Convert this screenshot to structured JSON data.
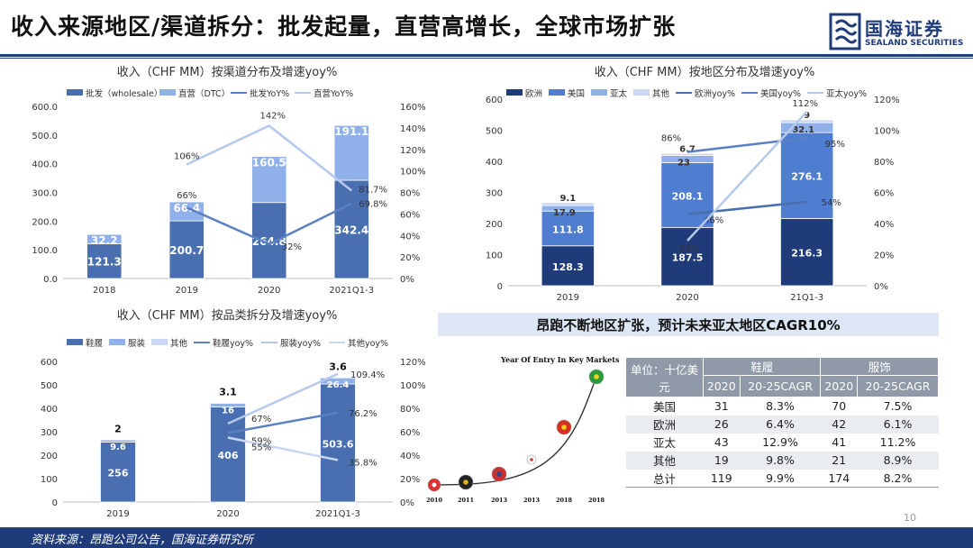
{
  "header": {
    "title": "收入来源地区/渠道拆分：批发起量，直营高增长，全球市场扩张",
    "logo_cn": "国海证券",
    "logo_en": "SEALAND SECURITIES"
  },
  "colors": {
    "navy": "#1f3b7a",
    "dark_blue": "#4a6fb0",
    "mid_blue": "#4f7ed0",
    "light_blue": "#8fb0e8",
    "pale_blue": "#c9d7f2",
    "line_dark": "#5a80c4",
    "line_light": "#b5c9ec",
    "banner": "#dce6f4",
    "table_header": "#8f99a8"
  },
  "chart_data": [
    {
      "type": "bar",
      "stacked": true,
      "title": "收入（CHF MM）按渠道分布及增速yoy%",
      "categories": [
        "2018",
        "2019",
        "2020",
        "2021Q1-3"
      ],
      "series": [
        {
          "name": "批发（wholesale）",
          "values": [
            121.3,
            200.7,
            264.8,
            342.4
          ],
          "labels": [
            "121.3",
            "200.7",
            "264.8",
            "342.4"
          ]
        },
        {
          "name": "直营（DTC）",
          "values": [
            32.2,
            66.4,
            160.5,
            191.1
          ],
          "labels": [
            "32.2",
            "66.4",
            "160.5",
            "191.1"
          ]
        }
      ],
      "lines": [
        {
          "name": "批发YoY%",
          "values": [
            null,
            66,
            32,
            69.8
          ],
          "labels": [
            "",
            "66%",
            "32%",
            "69.8%"
          ]
        },
        {
          "name": "直营YoY%",
          "values": [
            null,
            106,
            142,
            81.7
          ],
          "labels": [
            "",
            "106%",
            "142%",
            "81.7%"
          ]
        }
      ],
      "ylim": [
        0,
        600
      ],
      "yticks": [
        "0.0",
        "100.0",
        "200.0",
        "300.0",
        "400.0",
        "500.0",
        "600.0"
      ],
      "y2lim": [
        0,
        160
      ],
      "y2ticks": [
        "0%",
        "20%",
        "40%",
        "60%",
        "80%",
        "100%",
        "120%",
        "140%",
        "160%"
      ],
      "legend": "top"
    },
    {
      "type": "bar",
      "stacked": true,
      "title": "收入（CHF MM）按地区分布及增速yoy%",
      "categories": [
        "2019",
        "2020",
        "21Q1-3"
      ],
      "series": [
        {
          "name": "欧洲",
          "values": [
            128.3,
            187.5,
            216.3
          ],
          "labels": [
            "128.3",
            "187.5",
            "216.3"
          ]
        },
        {
          "name": "美国",
          "values": [
            111.8,
            208.1,
            276.1
          ],
          "labels": [
            "111.8",
            "208.1",
            "276.1"
          ]
        },
        {
          "name": "亚太",
          "values": [
            17.9,
            23,
            32.1
          ],
          "labels": [
            "17.9",
            "23",
            "32.1"
          ]
        },
        {
          "name": "其他",
          "values": [
            9.1,
            6.7,
            9
          ],
          "labels": [
            "9.1",
            "6.7",
            "9"
          ]
        }
      ],
      "lines": [
        {
          "name": "欧洲yoy%",
          "values": [
            null,
            46,
            54
          ],
          "labels": [
            "",
            "46%",
            "54%"
          ]
        },
        {
          "name": "美国yoy%",
          "values": [
            null,
            86,
            95
          ],
          "labels": [
            "",
            "86%",
            "95%"
          ]
        },
        {
          "name": "亚太yoy%",
          "values": [
            null,
            29,
            112
          ],
          "labels": [
            "",
            "29%",
            "112%"
          ]
        }
      ],
      "ylim": [
        0,
        600
      ],
      "yticks": [
        "0",
        "100",
        "200",
        "300",
        "400",
        "500",
        "600"
      ],
      "y2lim": [
        0,
        120
      ],
      "y2ticks": [
        "0%",
        "20%",
        "40%",
        "60%",
        "80%",
        "100%",
        "120%"
      ],
      "legend": "top"
    },
    {
      "type": "bar",
      "stacked": true,
      "title": "收入（CHF MM）按品类拆分及增速yoy%",
      "categories": [
        "2019",
        "2020",
        "2021Q1-3"
      ],
      "series": [
        {
          "name": "鞋履",
          "values": [
            256,
            406,
            503.6
          ],
          "labels": [
            "256",
            "406",
            "503.6"
          ]
        },
        {
          "name": "服装",
          "values": [
            9.6,
            16,
            26.4
          ],
          "labels": [
            "9.6",
            "16",
            "26.4"
          ]
        },
        {
          "name": "其他",
          "values": [
            2,
            3.1,
            3.6
          ],
          "labels": [
            "2",
            "3.1",
            "3.6"
          ]
        }
      ],
      "lines": [
        {
          "name": "鞋履yoy%",
          "values": [
            null,
            59,
            76.2
          ],
          "labels": [
            "",
            "59%",
            "76.2%"
          ]
        },
        {
          "name": "服装yoy%",
          "values": [
            null,
            67,
            109.4
          ],
          "labels": [
            "",
            "67%",
            "109.4%"
          ]
        },
        {
          "name": "其他yoy%",
          "values": [
            null,
            55,
            35.8
          ],
          "labels": [
            "",
            "55%",
            "35.8%"
          ]
        }
      ],
      "ylim": [
        0,
        600
      ],
      "yticks": [
        "0",
        "100",
        "200",
        "300",
        "400",
        "500",
        "600"
      ],
      "y2lim": [
        0,
        120
      ],
      "y2ticks": [
        "0%",
        "20%",
        "40%",
        "60%",
        "80%",
        "100%",
        "120%"
      ],
      "legend": "top"
    },
    {
      "type": "line",
      "title": "Year Of Entry In Key Markets",
      "categories": [
        "2010",
        "2011",
        "2013",
        "2013",
        "2018",
        "2018"
      ],
      "markers": [
        "switzerland-flag-icon",
        "germany-flag-icon",
        "usa-flag-icon",
        "japan-flag-icon",
        "china-flag-icon",
        "brazil-flag-icon"
      ]
    },
    {
      "type": "table",
      "unit_label": "单位：十亿美元",
      "groups": [
        "鞋履",
        "服饰"
      ],
      "columns": [
        "2020",
        "20-25CAGR",
        "2020",
        "20-25CAGR"
      ],
      "rows": [
        {
          "region": "美国",
          "values": [
            "31",
            "8.3%",
            "70",
            "7.5%"
          ]
        },
        {
          "region": "欧洲",
          "values": [
            "26",
            "6.4%",
            "42",
            "6.1%"
          ]
        },
        {
          "region": "亚太",
          "values": [
            "43",
            "12.9%",
            "41",
            "11.2%"
          ]
        },
        {
          "region": "其他",
          "values": [
            "19",
            "9.8%",
            "21",
            "8.9%"
          ]
        },
        {
          "region": "总计",
          "values": [
            "119",
            "9.9%",
            "174",
            "8.2%"
          ]
        }
      ]
    }
  ],
  "banner": {
    "text": "昂跑不断地区扩张，预计未来亚太地区CAGR10%"
  },
  "page_number": "10",
  "footer": {
    "source": "资料来源：昂跑公司公告，国海证券研究所"
  }
}
